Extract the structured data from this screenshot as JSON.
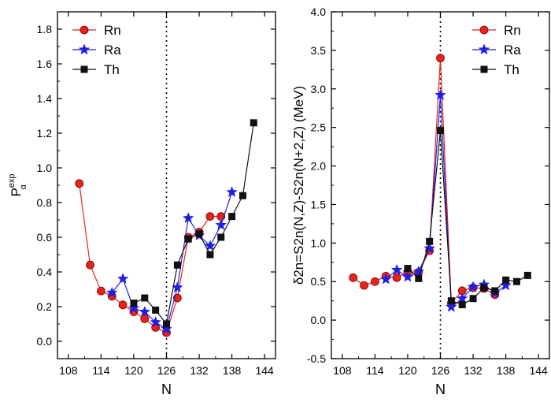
{
  "chart_data": [
    {
      "type": "line",
      "panel": "left",
      "ylabel": {
        "base": "P",
        "sup": "exp",
        "sub": "α"
      },
      "xlabel": "N",
      "xlim": [
        106,
        146
      ],
      "ylim": [
        -0.1,
        1.9
      ],
      "xticks": [
        108,
        114,
        120,
        126,
        132,
        138,
        144
      ],
      "yticks": [
        0.0,
        0.2,
        0.4,
        0.6,
        0.8,
        1.0,
        1.2,
        1.4,
        1.6,
        1.8
      ],
      "ytick_labels": [
        "0.0",
        "0.2",
        "0.4",
        "0.6",
        "0.8",
        "1.0",
        "1.2",
        "1.4",
        "1.6",
        "1.8"
      ],
      "vline_x": 126,
      "legend_position": "top-left",
      "series": [
        {
          "name": "Rn",
          "color": "#e8231c",
          "marker": "circle",
          "x": [
            110,
            112,
            114,
            116,
            118,
            120,
            122,
            124,
            126,
            128,
            130,
            132,
            134,
            136
          ],
          "y": [
            0.91,
            0.44,
            0.29,
            0.26,
            0.21,
            0.17,
            0.13,
            0.08,
            0.05,
            0.25,
            0.6,
            0.63,
            0.72,
            0.72
          ]
        },
        {
          "name": "Ra",
          "color": "#1f1fe6",
          "marker": "star",
          "x": [
            116,
            118,
            120,
            122,
            124,
            126,
            128,
            130,
            132,
            134,
            136,
            138
          ],
          "y": [
            0.28,
            0.36,
            0.19,
            0.17,
            0.11,
            0.07,
            0.31,
            0.71,
            0.61,
            0.55,
            0.67,
            0.86
          ]
        },
        {
          "name": "Th",
          "color": "#111111",
          "marker": "square",
          "x": [
            120,
            122,
            124,
            126,
            128,
            130,
            132,
            134,
            136,
            138,
            140,
            142
          ],
          "y": [
            0.22,
            0.25,
            0.18,
            0.1,
            0.44,
            0.59,
            0.62,
            0.5,
            0.6,
            0.72,
            0.84,
            1.26
          ]
        }
      ]
    },
    {
      "type": "line",
      "panel": "right",
      "ylabel": "δ2n=S2n(N,Z)-S2n(N+2,Z) (MeV)",
      "xlabel": "N",
      "xlim": [
        106,
        146
      ],
      "ylim": [
        -0.5,
        4.0
      ],
      "xticks": [
        108,
        114,
        120,
        126,
        132,
        138,
        144
      ],
      "yticks": [
        -0.5,
        0.0,
        0.5,
        1.0,
        1.5,
        2.0,
        2.5,
        3.0,
        3.5,
        4.0
      ],
      "ytick_labels": [
        "-0.5",
        "0.0",
        "0.5",
        "1.0",
        "1.5",
        "2.0",
        "2.5",
        "3.0",
        "3.5",
        "4.0"
      ],
      "vline_x": 126,
      "legend_position": "top-right",
      "series": [
        {
          "name": "Rn",
          "color": "#e8231c",
          "marker": "circle",
          "x": [
            110,
            112,
            114,
            116,
            118,
            120,
            122,
            124,
            126,
            128,
            130,
            132,
            134,
            136
          ],
          "y": [
            0.55,
            0.45,
            0.5,
            0.57,
            0.55,
            0.63,
            0.62,
            0.9,
            3.4,
            0.22,
            0.38,
            0.42,
            0.41,
            0.33
          ]
        },
        {
          "name": "Ra",
          "color": "#1f1fe6",
          "marker": "star",
          "x": [
            116,
            118,
            120,
            122,
            124,
            126,
            128,
            130,
            132,
            134,
            136,
            138
          ],
          "y": [
            0.53,
            0.65,
            0.56,
            0.63,
            0.93,
            2.92,
            0.17,
            0.28,
            0.43,
            0.46,
            0.35,
            0.45
          ]
        },
        {
          "name": "Th",
          "color": "#111111",
          "marker": "square",
          "x": [
            120,
            122,
            124,
            126,
            128,
            130,
            132,
            134,
            136,
            138,
            140,
            142
          ],
          "y": [
            0.67,
            0.54,
            1.02,
            2.46,
            0.25,
            0.2,
            0.28,
            0.42,
            0.38,
            0.52,
            0.5,
            0.58
          ]
        }
      ]
    }
  ]
}
